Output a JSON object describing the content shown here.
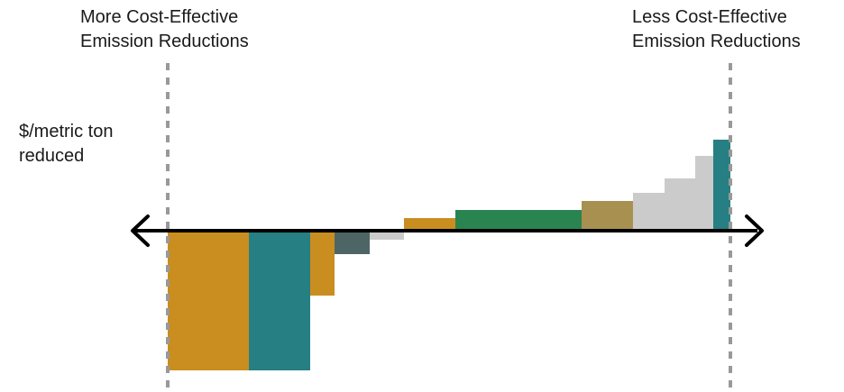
{
  "annotations": {
    "more": [
      "More Cost-Effective",
      "Emission Reductions"
    ],
    "less": [
      "Less Cost-Effective",
      "Emission Reductions"
    ],
    "unit": [
      "$/metric ton",
      "reduced"
    ]
  },
  "colors": {
    "orange": "#c98e1f",
    "teal": "#267f83",
    "slate": "#4e6566",
    "lightgray": "#cbcbcb",
    "green": "#2a8450",
    "olive": "#a89150",
    "axis": "#000000",
    "guide": "#999999"
  },
  "chart_data": {
    "type": "bar",
    "description_note": "",
    "grid": false,
    "bars": [
      {
        "width": 90,
        "value": -155,
        "color": "orange"
      },
      {
        "width": 68,
        "value": -155,
        "color": "teal"
      },
      {
        "width": 27,
        "value": -72,
        "color": "orange"
      },
      {
        "width": 39,
        "value": -26,
        "color": "slate"
      },
      {
        "width": 38,
        "value": -10,
        "color": "lightgray"
      },
      {
        "width": 57,
        "value": 14,
        "color": "orange"
      },
      {
        "width": 140,
        "value": 23,
        "color": "green"
      },
      {
        "width": 57,
        "value": 33,
        "color": "olive"
      },
      {
        "width": 35,
        "value": 42,
        "color": "lightgray"
      },
      {
        "width": 34,
        "value": 58,
        "color": "lightgray"
      },
      {
        "width": 20,
        "value": 83,
        "color": "lightgray"
      },
      {
        "width": 19,
        "value": 101,
        "color": "teal"
      }
    ]
  }
}
